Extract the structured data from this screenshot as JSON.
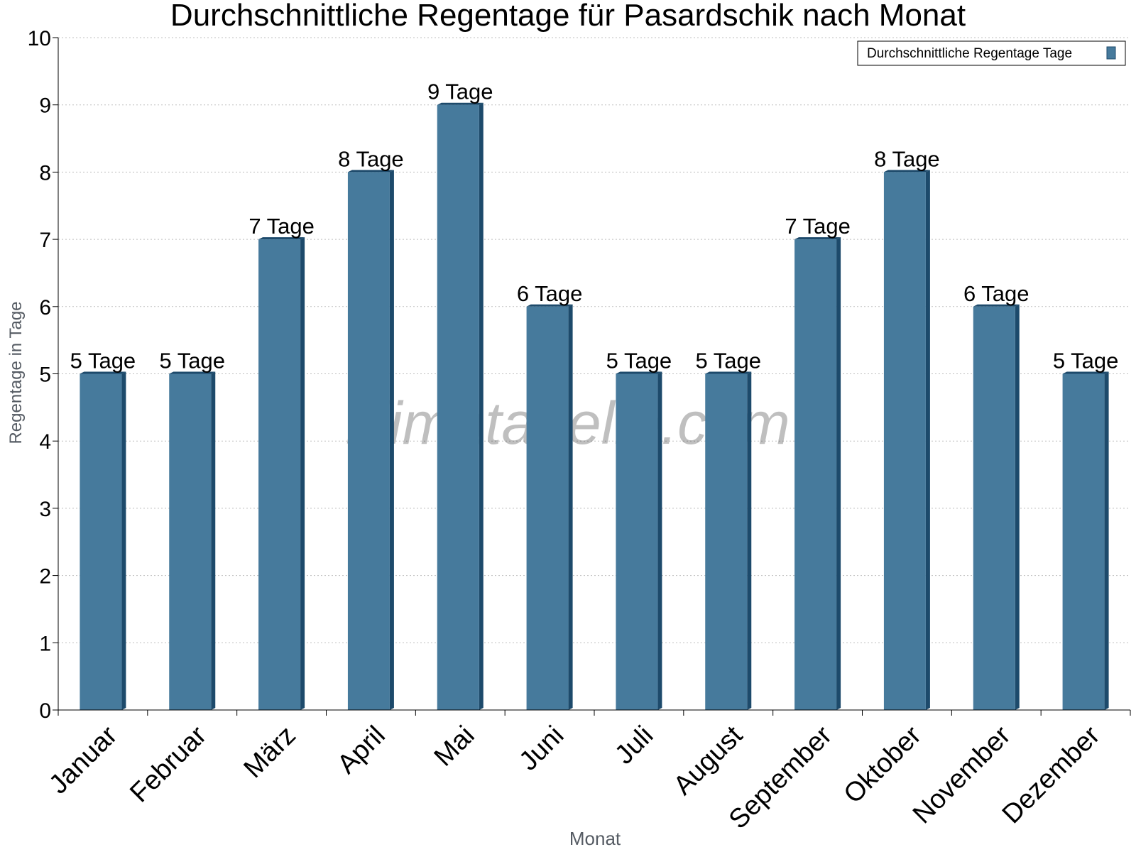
{
  "chart_data": {
    "type": "bar",
    "title": "Durchschnittliche Regentage für Pasardschik nach Monat",
    "xlabel": "Monat",
    "ylabel": "Regentage in Tage",
    "ylim": [
      0,
      10
    ],
    "yticks": [
      "0",
      "1",
      "2",
      "3",
      "4",
      "5",
      "6",
      "7",
      "8",
      "9",
      "10"
    ],
    "grid": true,
    "legend_position": "top-right",
    "categories": [
      "Januar",
      "Februar",
      "März",
      "April",
      "Mai",
      "Juni",
      "Juli",
      "August",
      "September",
      "Oktober",
      "November",
      "Dezember"
    ],
    "series": [
      {
        "name": "Durchschnittliche Regentage Tage",
        "values": [
          5,
          5,
          7,
          8,
          9,
          6,
          5,
          5,
          7,
          8,
          6,
          5
        ],
        "labels": [
          "5 Tage",
          "5 Tage",
          "7 Tage",
          "8 Tage",
          "9 Tage",
          "6 Tage",
          "5 Tage",
          "5 Tage",
          "7 Tage",
          "8 Tage",
          "6 Tage",
          "5 Tage"
        ],
        "color": "#467a9c",
        "side_color": "#1d4a6b"
      }
    ],
    "watermark": "klimatabelle.com"
  }
}
